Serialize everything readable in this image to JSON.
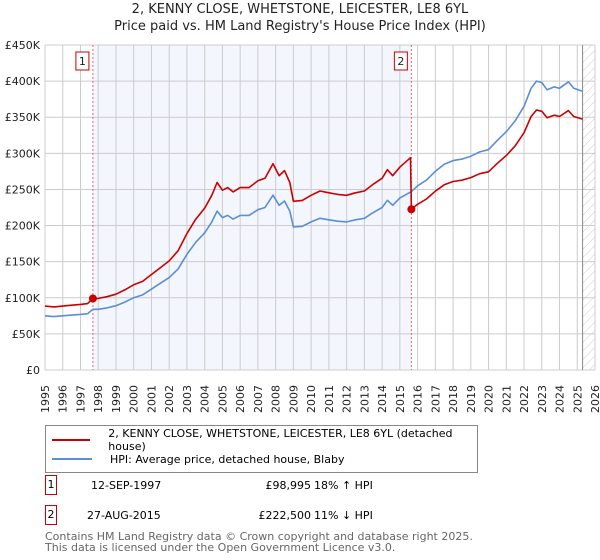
{
  "chart_data": {
    "type": "line",
    "title": "2, KENNY CLOSE, WHETSTONE, LEICESTER, LE8 6YL",
    "subtitle": "Price paid vs. HM Land Registry's House Price Index (HPI)",
    "xlim": [
      1995,
      2026
    ],
    "ylim": [
      0,
      450000
    ],
    "x_ticks": [
      "1995",
      "1996",
      "1997",
      "1998",
      "1999",
      "2000",
      "2001",
      "2002",
      "2003",
      "2004",
      "2005",
      "2006",
      "2007",
      "2008",
      "2009",
      "2010",
      "2011",
      "2012",
      "2013",
      "2014",
      "2015",
      "2016",
      "2017",
      "2018",
      "2019",
      "2020",
      "2021",
      "2022",
      "2023",
      "2024",
      "2025",
      "2026"
    ],
    "y_ticks": [
      {
        "v": 0,
        "label": "£0"
      },
      {
        "v": 50000,
        "label": "£50K"
      },
      {
        "v": 100000,
        "label": "£100K"
      },
      {
        "v": 150000,
        "label": "£150K"
      },
      {
        "v": 200000,
        "label": "£200K"
      },
      {
        "v": 250000,
        "label": "£250K"
      },
      {
        "v": 300000,
        "label": "£300K"
      },
      {
        "v": 350000,
        "label": "£350K"
      },
      {
        "v": 400000,
        "label": "£400K"
      },
      {
        "v": 450000,
        "label": "£450K"
      }
    ],
    "grid": true,
    "shaded_range": [
      1997.7,
      2015.65
    ],
    "hatched_from": 2025.3,
    "series": [
      {
        "name": "2, KENNY CLOSE, WHETSTONE, LEICESTER, LE8 6YL (detached house)",
        "color": "#cc0000",
        "x": [
          1995,
          1995.5,
          1996,
          1996.5,
          1997,
          1997.4,
          1997.7,
          1998,
          1998.5,
          1999,
          1999.5,
          2000,
          2000.5,
          2001,
          2001.5,
          2002,
          2002.5,
          2003,
          2003.5,
          2004,
          2004.4,
          2004.7,
          2005,
          2005.3,
          2005.6,
          2006,
          2006.5,
          2007,
          2007.4,
          2007.85,
          2008.2,
          2008.5,
          2008.8,
          2009,
          2009.5,
          2010,
          2010.5,
          2011,
          2011.5,
          2012,
          2012.5,
          2013,
          2013.5,
          2014,
          2014.3,
          2014.6,
          2015,
          2015.6,
          2015.65,
          2016,
          2016.5,
          2017,
          2017.5,
          2018,
          2018.5,
          2019,
          2019.5,
          2020,
          2020.5,
          2021,
          2021.5,
          2022,
          2022.4,
          2022.7,
          2023,
          2023.3,
          2023.7,
          2024,
          2024.5,
          2024.8,
          2025.3
        ],
        "y": [
          88500,
          87300,
          88500,
          89700,
          90900,
          92000,
          98995,
          99100,
          101500,
          105000,
          110900,
          118000,
          122700,
          132200,
          141600,
          151000,
          165200,
          188800,
          208900,
          224200,
          241900,
          259600,
          249000,
          252500,
          246600,
          252500,
          252500,
          262000,
          265500,
          285600,
          269000,
          276100,
          259600,
          233600,
          234800,
          241900,
          247800,
          245400,
          243100,
          241900,
          245400,
          247800,
          257200,
          265500,
          277300,
          269000,
          280800,
          294000,
          222500,
          229500,
          236700,
          247500,
          256500,
          261000,
          262800,
          266400,
          271800,
          274500,
          286200,
          297000,
          310500,
          328500,
          351000,
          360000,
          358200,
          349200,
          352800,
          351000,
          359100,
          351000,
          347400
        ]
      },
      {
        "name": "HPI: Average price, detached house, Blaby",
        "color": "#5b8ed6",
        "x": [
          1995,
          1995.5,
          1996,
          1996.5,
          1997,
          1997.4,
          1997.7,
          1998,
          1998.5,
          1999,
          1999.5,
          2000,
          2000.5,
          2001,
          2001.5,
          2002,
          2002.5,
          2003,
          2003.5,
          2004,
          2004.4,
          2004.7,
          2005,
          2005.3,
          2005.6,
          2006,
          2006.5,
          2007,
          2007.4,
          2007.85,
          2008.2,
          2008.5,
          2008.8,
          2009,
          2009.5,
          2010,
          2010.5,
          2011,
          2011.5,
          2012,
          2012.5,
          2013,
          2013.5,
          2014,
          2014.3,
          2014.6,
          2015,
          2015.65,
          2016,
          2016.5,
          2017,
          2017.5,
          2018,
          2018.5,
          2019,
          2019.5,
          2020,
          2020.5,
          2021,
          2021.5,
          2022,
          2022.4,
          2022.7,
          2023,
          2023.3,
          2023.7,
          2024,
          2024.5,
          2024.8,
          2025.3
        ],
        "y": [
          75000,
          74000,
          75000,
          76000,
          77000,
          78000,
          84000,
          84000,
          86000,
          89000,
          94000,
          100000,
          104000,
          112000,
          120000,
          128000,
          140000,
          160000,
          177000,
          190000,
          205000,
          220000,
          211000,
          214000,
          209000,
          214000,
          214000,
          222000,
          225000,
          242000,
          228000,
          234000,
          220000,
          198000,
          199000,
          205000,
          210000,
          208000,
          206000,
          205000,
          208000,
          210000,
          218000,
          225000,
          235000,
          228000,
          238000,
          247000,
          255000,
          263000,
          275000,
          285000,
          290000,
          292000,
          296000,
          302000,
          305000,
          318000,
          330000,
          345000,
          365000,
          390000,
          400000,
          398000,
          388000,
          392000,
          390000,
          399000,
          390000,
          386000
        ]
      }
    ],
    "sales": [
      {
        "n": "1",
        "x": 1997.7,
        "y": 98995
      },
      {
        "n": "2",
        "x": 2015.65,
        "y": 222500
      }
    ]
  },
  "legend": {
    "property": "2, KENNY CLOSE, WHETSTONE, LEICESTER, LE8 6YL (detached house)",
    "hpi": "HPI: Average price, detached house, Blaby"
  },
  "transactions": [
    {
      "n": "1",
      "date": "12-SEP-1997",
      "price": "£98,995",
      "hpi": "18% ↑ HPI"
    },
    {
      "n": "2",
      "date": "27-AUG-2015",
      "price": "£222,500",
      "hpi": "11% ↓ HPI"
    }
  ],
  "footer": {
    "line1": "Contains HM Land Registry data © Crown copyright and database right 2025.",
    "line2": "This data is licensed under the Open Government Licence v3.0."
  }
}
